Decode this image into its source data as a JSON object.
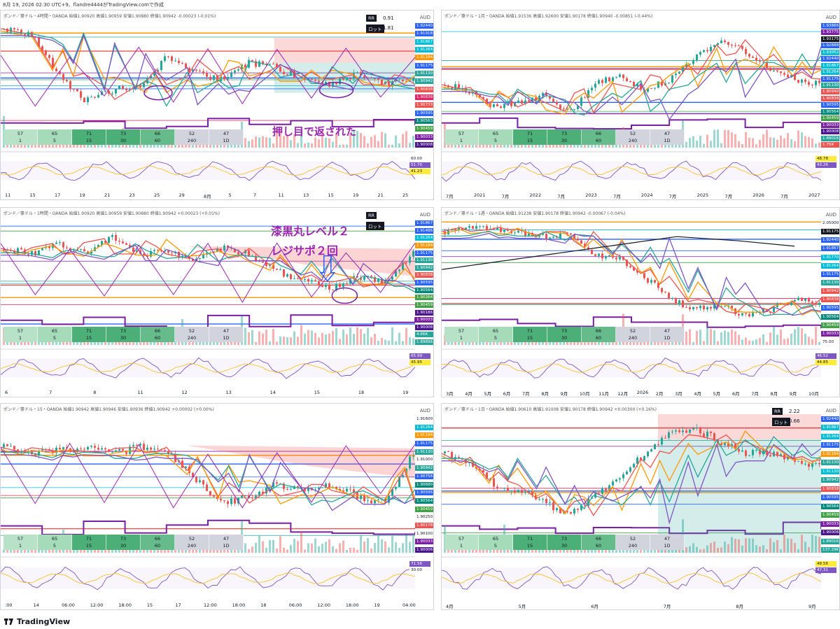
{
  "header": {
    "text": "8月 19, 2026 02:30 UTC+9、flandre4444がTradingView.comで作成"
  },
  "footer": {
    "brand": "TradingView"
  },
  "colors": {
    "bull": "#26a69a",
    "bear": "#ef5350",
    "purple": "#9c27b0",
    "navy": "#1a237e",
    "blue": "#2962ff"
  },
  "timeframes": [
    {
      "a": "57",
      "b": "1",
      "color": "#b7e2c8"
    },
    {
      "a": "65",
      "b": "5",
      "color": "#a5dbb9"
    },
    {
      "a": "71",
      "b": "15",
      "color": "#4caf78"
    },
    {
      "a": "73",
      "b": "30",
      "color": "#4caf78"
    },
    {
      "a": "66",
      "b": "60",
      "color": "#66bb8a"
    },
    {
      "a": "52",
      "b": "240",
      "color": "#d1d4dc"
    },
    {
      "a": "47",
      "b": "1D",
      "color": "#d1d4dc"
    }
  ],
  "panes": [
    {
      "id": "p1",
      "title": "ポンド／豪ドル・4時間・OANDA  始値1.90920 高値1.90959 安値1.90880 終値1.90942 -0.00023 (-0.01%)",
      "aud": "AUD",
      "rr": {
        "label": "RR",
        "value": "0.91",
        "lot": "ロット",
        "lot_value": "1.81"
      },
      "prices": [
        {
          "v": "1.92440",
          "c": "#2962ff"
        },
        {
          "v": "1.91918",
          "c": "#2962ff"
        },
        {
          "v": "1.91867",
          "c": "#00bcd4"
        },
        {
          "v": "1.91264",
          "c": "#00bcd4"
        },
        {
          "v": "1.91184",
          "c": "#ff9800"
        },
        {
          "v": "1.91175",
          "c": "#2962ff"
        },
        {
          "v": "1.91130",
          "c": "#26a69a"
        },
        {
          "v": "1.90942",
          "c": "#26a69a"
        },
        {
          "v": "1.90838",
          "c": "#ef5350"
        },
        {
          "v": "1.90838",
          "c": "#e91e63"
        },
        {
          "v": "1.90733",
          "c": "#ef5350"
        },
        {
          "v": "1.90595",
          "c": "#2962ff"
        },
        {
          "v": "1.90563",
          "c": "#00897b"
        },
        {
          "v": "1.90459",
          "c": "#43a047"
        },
        {
          "v": "1.90033",
          "c": "#7b1fa2"
        },
        {
          "v": "1.90008",
          "c": "#4a148c"
        }
      ],
      "rsi": [
        {
          "v": "60.00",
          "c": "#fff"
        },
        {
          "v": "51.70",
          "c": "#7e57c2"
        },
        {
          "v": "41.23",
          "c": "#ffeb3b"
        }
      ],
      "xlabels": [
        "11",
        "15",
        "17",
        "19",
        "21",
        "23",
        "25",
        "29",
        "8月",
        "5",
        "7",
        "11",
        "13",
        "15",
        "19",
        "21",
        "25"
      ],
      "annotation": "押し目で返された"
    },
    {
      "id": "p2",
      "title": "ポンド／豪ドル・1月・OANDA  始値1.91536 高値1.92600 安値1.90178 終値1.90940 -0.00851 (-0.44%)",
      "aud": "AUD",
      "prices": [
        {
          "v": "1.93866",
          "c": "#2962ff"
        },
        {
          "v": "1.93775",
          "c": "#7b1fa2"
        },
        {
          "v": "1.93175",
          "c": "#131722"
        },
        {
          "v": "1.92888",
          "c": "#2962ff"
        },
        {
          "v": "1.93052",
          "c": "#00bcd4"
        },
        {
          "v": "1.92440",
          "c": "#2962ff"
        },
        {
          "v": "1.91867",
          "c": "#00bcd4"
        },
        {
          "v": "1.91264",
          "c": "#00bcd4"
        },
        {
          "v": "1.91175",
          "c": "#2962ff"
        },
        {
          "v": "1.91130",
          "c": "#26a69a"
        },
        {
          "v": "1.90940",
          "c": "#ef5350"
        },
        {
          "v": "1.90838",
          "c": "#ef5350"
        },
        {
          "v": "1.90595",
          "c": "#2962ff"
        },
        {
          "v": "1.90564",
          "c": "#00897b"
        },
        {
          "v": "1.90459",
          "c": "#43a047"
        },
        {
          "v": "1.90033",
          "c": "#7b1fa2"
        },
        {
          "v": "1.90008",
          "c": "#4a148c"
        },
        {
          "v": "1.89016",
          "c": "#26a69a"
        },
        {
          "v": "1.75K",
          "c": "#ef5350"
        }
      ],
      "rsi": [
        {
          "v": "48.78",
          "c": "#ffeb3b"
        },
        {
          "v": "43.26",
          "c": "#7e57c2"
        }
      ],
      "xlabels": [
        "7月",
        "2021",
        "7月",
        "2022",
        "7月",
        "2023",
        "7月",
        "2024",
        "7月",
        "2025",
        "7月",
        "2026",
        "7月",
        "2027"
      ]
    },
    {
      "id": "p3",
      "title": "ポンド／豪ドル・1時間・OANDA  始値1.90920 高値1.90959 安値1.90880 終値1.90942 +0.00023 (+0.01%)",
      "aud": "AUD",
      "rr": {
        "label": "RR",
        "value": "",
        "lot": "ロット",
        "lot_value": ""
      },
      "prices": [
        {
          "v": "1.91867",
          "c": "#2962ff"
        },
        {
          "v": "1.91486",
          "c": "#2962ff"
        },
        {
          "v": "1.91264",
          "c": "#00bcd4"
        },
        {
          "v": "1.91184",
          "c": "#ff9800"
        },
        {
          "v": "1.91175",
          "c": "#2962ff"
        },
        {
          "v": "1.91130",
          "c": "#26a69a"
        },
        {
          "v": "1.90942",
          "c": "#26a69a"
        },
        {
          "v": "1.90838",
          "c": "#ef5350"
        },
        {
          "v": "1.90595",
          "c": "#2962ff"
        },
        {
          "v": "1.90564",
          "c": "#00897b"
        },
        {
          "v": "1.90264",
          "c": "#43a047"
        },
        {
          "v": "1.90459",
          "c": "#43a047"
        },
        {
          "v": "1.90186",
          "c": "#4a148c"
        },
        {
          "v": "1.90033",
          "c": "#7b1fa2"
        },
        {
          "v": "1.90008",
          "c": "#4a148c"
        },
        {
          "v": "4.66K",
          "c": "#26a69a"
        },
        {
          "v": "1.89896",
          "c": "#26a69a"
        }
      ],
      "rsi": [
        {
          "v": "65.99",
          "c": "#7e57c2"
        },
        {
          "v": "45.95",
          "c": "#ffeb3b"
        }
      ],
      "xlabels": [
        "6",
        "7",
        "8",
        "11",
        "12",
        "13",
        "14",
        "15",
        "18",
        "19"
      ],
      "annotation1": "漆黒丸レベル２",
      "annotation2": "レジサポ２回"
    },
    {
      "id": "p4",
      "title": "ポンド／豪ドル・1週・OANDA  始値1.91238 安値1.90178 終値1.90942 -0.00067 (-0.04%)",
      "aud": "AUD",
      "prices": [
        {
          "v": "2.05000",
          "c": "#fff"
        },
        {
          "v": "1.91175",
          "c": "#131722"
        },
        {
          "v": "1.92440",
          "c": "#2962ff"
        },
        {
          "v": "1.91867",
          "c": "#2962ff"
        },
        {
          "v": "1.91770",
          "c": "#00bcd4"
        },
        {
          "v": "1.91264",
          "c": "#00bcd4"
        },
        {
          "v": "1.91175",
          "c": "#2962ff"
        },
        {
          "v": "1.91130",
          "c": "#26a69a"
        },
        {
          "v": "1.90942",
          "c": "#ef5350"
        },
        {
          "v": "1.90838",
          "c": "#ef5350"
        },
        {
          "v": "1.90595",
          "c": "#2962ff"
        },
        {
          "v": "1.90564",
          "c": "#00897b"
        },
        {
          "v": "1.90459",
          "c": "#43a047"
        },
        {
          "v": "1.90033",
          "c": "#7b1fa2"
        },
        {
          "v": "75.00",
          "c": "#fff"
        }
      ],
      "rsi": [
        {
          "v": "46.52",
          "c": "#7e57c2"
        },
        {
          "v": "44.85",
          "c": "#ffeb3b"
        }
      ],
      "xlabels": [
        "3月",
        "4月",
        "5月",
        "6月",
        "7月",
        "8月",
        "9月",
        "10月",
        "11月",
        "12月",
        "2026",
        "2月",
        "3月",
        "4月",
        "5月",
        "6月",
        "7月",
        "8月",
        "9月",
        "10月"
      ]
    },
    {
      "id": "p5",
      "title": "ポンド／豪ドル・15・OANDA  始値1.90942 高値1.90946 安値1.90936 終値1.90942 +0.00002 (+0.00%)",
      "aud": "AUD",
      "prices": [
        {
          "v": "1.91600",
          "c": "#fff"
        },
        {
          "v": "1.91264",
          "c": "#00bcd4"
        },
        {
          "v": "1.91184",
          "c": "#ff9800"
        },
        {
          "v": "1.91175",
          "c": "#2962ff"
        },
        {
          "v": "1.91130",
          "c": "#26a69a"
        },
        {
          "v": "1.91000",
          "c": "#fff"
        },
        {
          "v": "1.90942",
          "c": "#26a69a"
        },
        {
          "v": "1.90756",
          "c": "#2962ff"
        },
        {
          "v": "1.90680",
          "c": "#00897b"
        },
        {
          "v": "1.90595",
          "c": "#2962ff"
        },
        {
          "v": "1.90564",
          "c": "#00897b"
        },
        {
          "v": "1.90459",
          "c": "#43a047"
        },
        {
          "v": "1.90250",
          "c": "#fff"
        },
        {
          "v": "1.90178",
          "c": "#ef5350"
        },
        {
          "v": "1.90100",
          "c": "#fff"
        },
        {
          "v": "1.90033",
          "c": "#7b1fa2"
        },
        {
          "v": "1.90008",
          "c": "#4a148c"
        }
      ],
      "rsi": [
        {
          "v": "71.56",
          "c": "#7e57c2"
        },
        {
          "v": "30.00",
          "c": "#fff"
        }
      ],
      "xlabels": [
        ":00",
        "14",
        "06:00",
        "12:00",
        "18:00",
        "15",
        "17",
        "12:00",
        "18:00",
        "18",
        "06:00",
        "12:00",
        "18:00",
        "19",
        "04:00"
      ]
    },
    {
      "id": "p6",
      "title": "ポンド／豪ドル・1日・OANDA  始値1.90610 高値1.91008 安値1.90178 終値1.90942 +0.00300 (+0.16%)",
      "aud": "AUD",
      "rr": {
        "label": "RR",
        "value": "2.22",
        "lot": "ロット",
        "lot_value": "0.66"
      },
      "prices": [
        {
          "v": "1.92440",
          "c": "#2962ff"
        },
        {
          "v": "1.91867",
          "c": "#00bcd4"
        },
        {
          "v": "1.91264",
          "c": "#00bcd4"
        },
        {
          "v": "1.91175",
          "c": "#2962ff"
        },
        {
          "v": "1.91184",
          "c": "#ff9800"
        },
        {
          "v": "1.91130",
          "c": "#26a69a"
        },
        {
          "v": "1.91130",
          "c": "#00bcd4"
        },
        {
          "v": "1.90942",
          "c": "#26a69a"
        },
        {
          "v": "1.90838",
          "c": "#ef5350"
        },
        {
          "v": "1.90595",
          "c": "#2962ff"
        },
        {
          "v": "1.90564",
          "c": "#00897b"
        },
        {
          "v": "1.90459",
          "c": "#43a047"
        },
        {
          "v": "1.90033",
          "c": "#7b1fa2"
        },
        {
          "v": "1.90008",
          "c": "#4a148c"
        },
        {
          "v": "1.89016",
          "c": "#26a69a"
        },
        {
          "v": "137.29K",
          "c": "#26a69a"
        }
      ],
      "rsi": [
        {
          "v": "48.56",
          "c": "#ffeb3b"
        },
        {
          "v": "47.31",
          "c": "#7e57c2"
        }
      ],
      "xlabels": [
        "4月",
        "5月",
        "6月",
        "7月",
        "8月",
        "9月"
      ]
    }
  ]
}
